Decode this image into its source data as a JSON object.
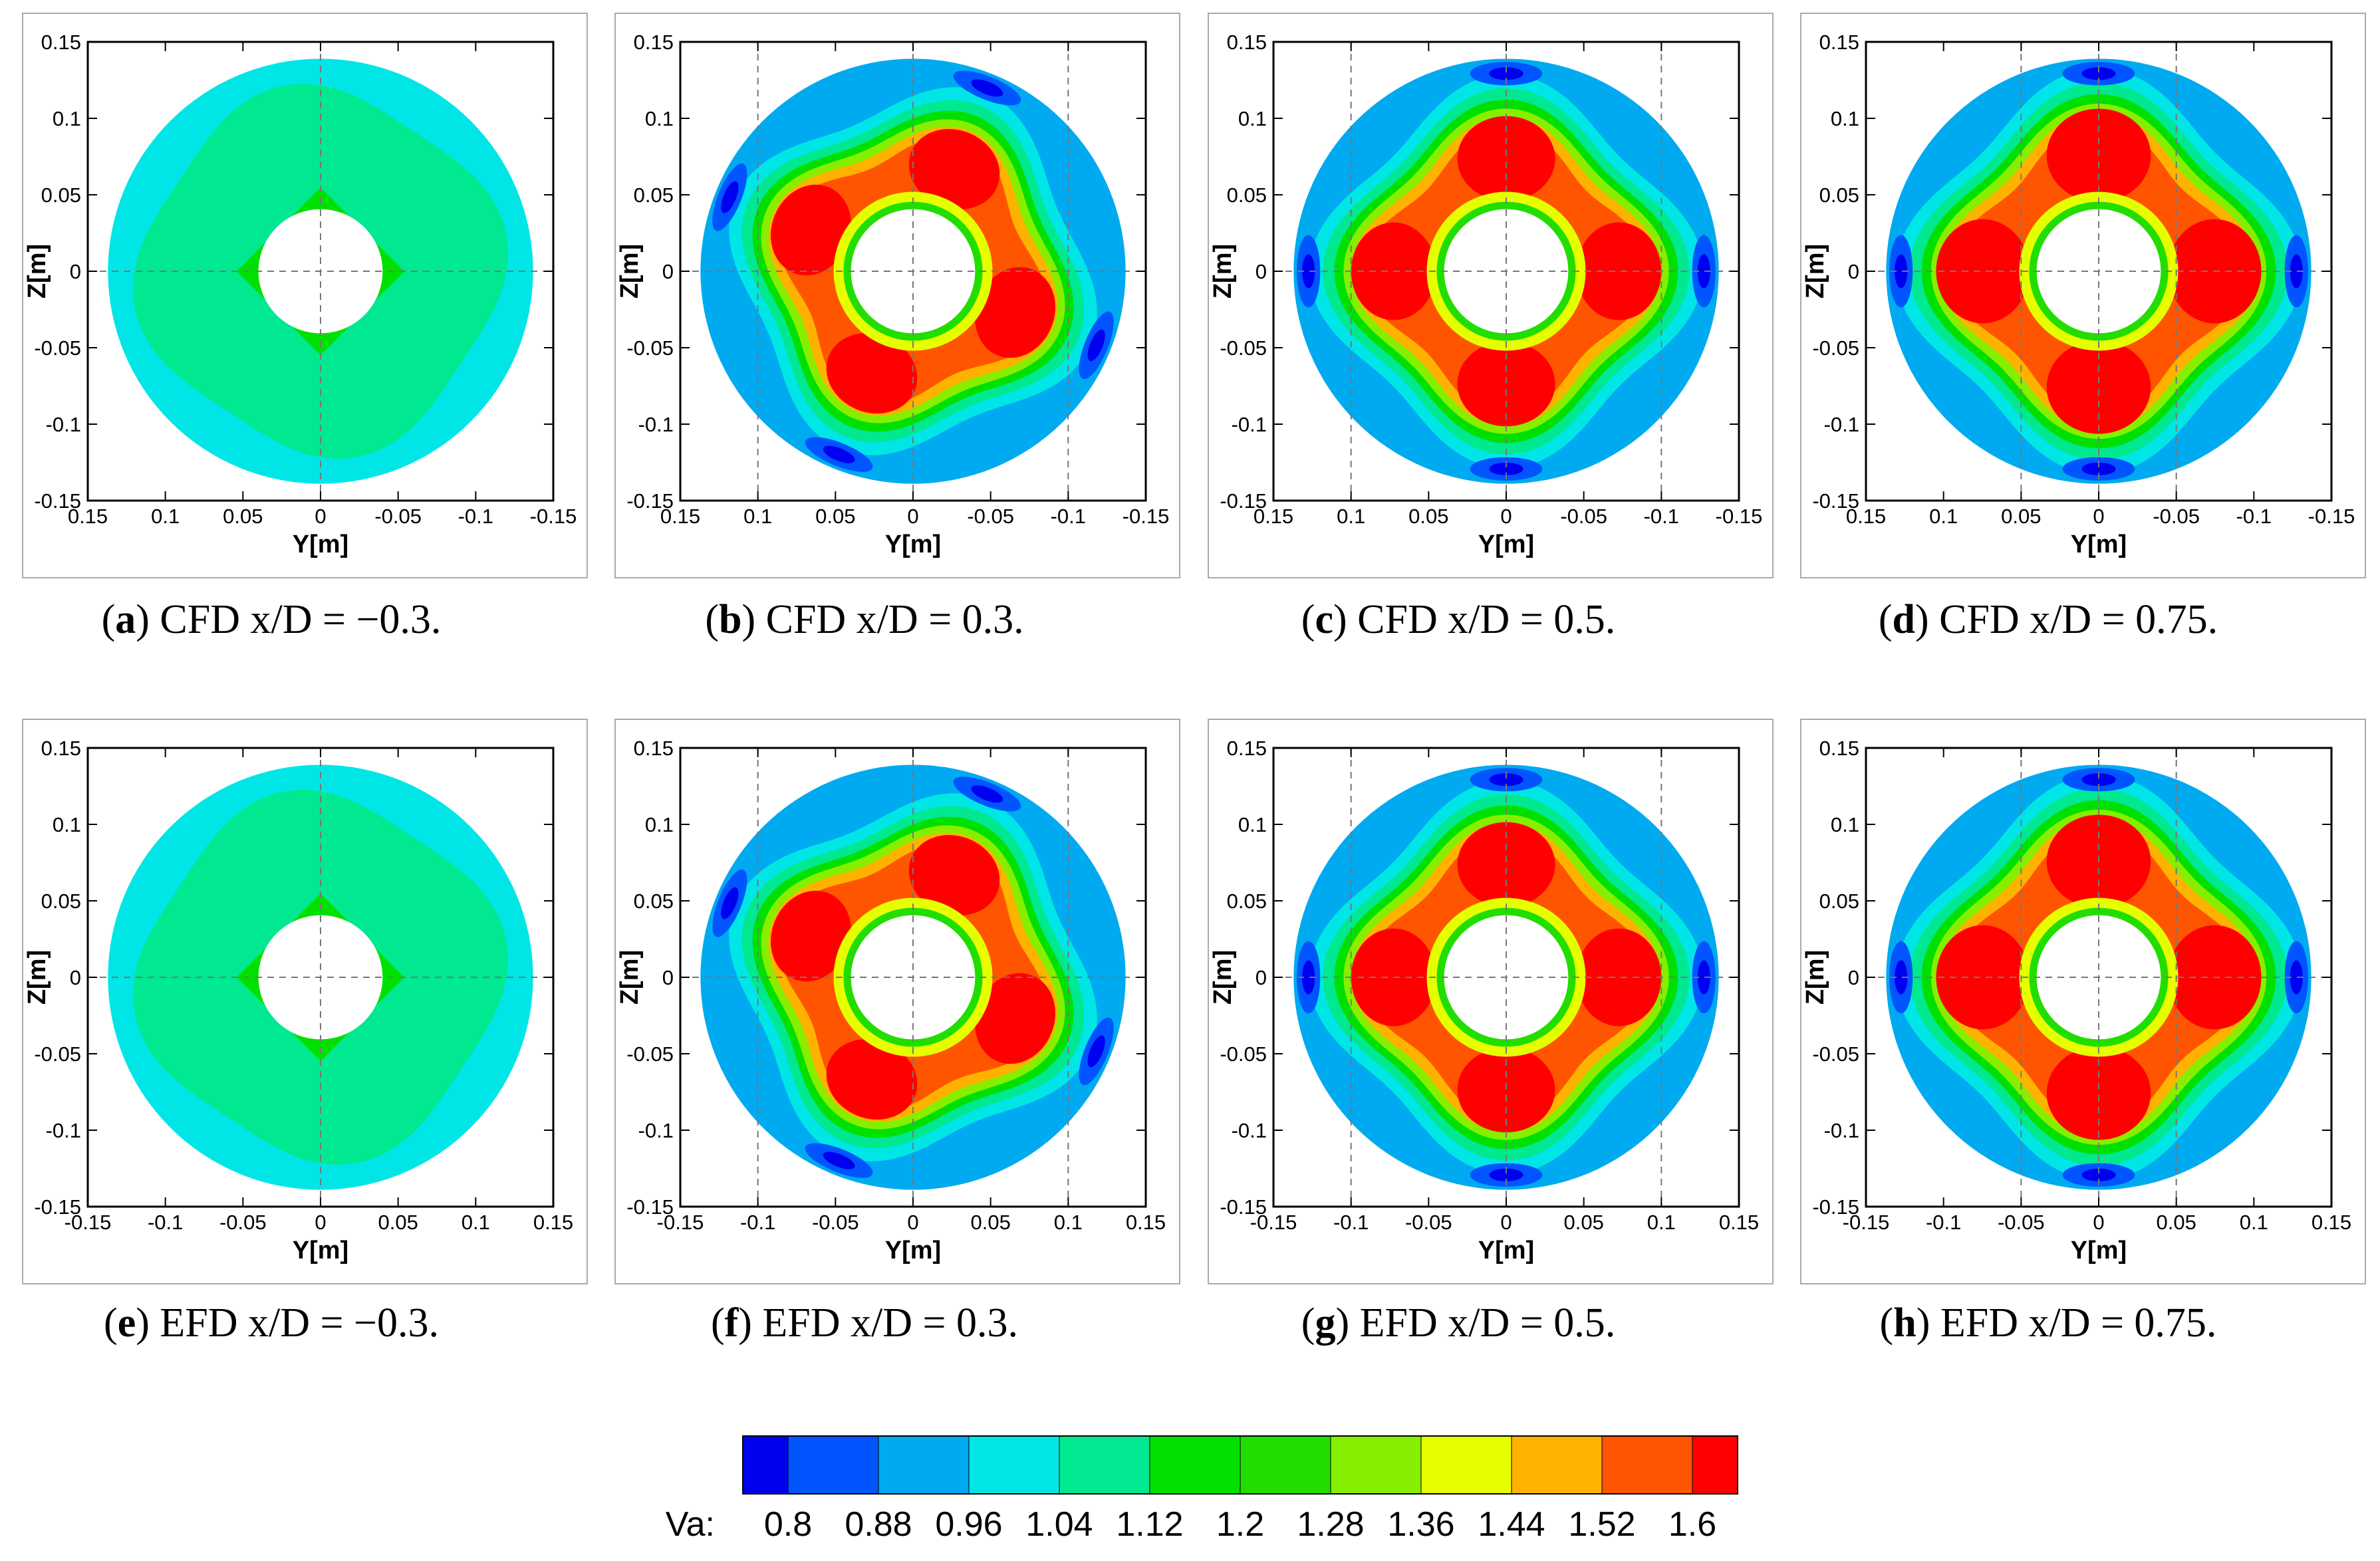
{
  "chart_data": {
    "type": "heatmap",
    "title": "",
    "quantity": "Va",
    "xlabel": "Y[m]",
    "ylabel": "Z[m]",
    "xlim": [
      -0.15,
      0.15
    ],
    "ylim": [
      -0.15,
      0.15
    ],
    "grid": "dashed reference lines",
    "yticks": [
      "0.15",
      "0.1",
      "0.05",
      "0",
      "-0.05",
      "-0.1",
      "-0.15"
    ],
    "xticks_reversed": [
      "0.15",
      "0.1",
      "0.05",
      "0",
      "-0.05",
      "-0.1",
      "-0.15"
    ],
    "xticks_normal": [
      "-0.15",
      "-0.1",
      "-0.05",
      "0",
      "0.05",
      "0.1",
      "0.15"
    ],
    "panels": [
      {
        "letter": "a",
        "method": "CFD",
        "xd": "−0.3",
        "x_reversed": true,
        "case": "upstream",
        "ring": 0,
        "rot": 0,
        "dashed_x": []
      },
      {
        "letter": "b",
        "method": "CFD",
        "xd": "0.3",
        "x_reversed": true,
        "case": "wake",
        "ring": 0.3,
        "rot": 22,
        "dashed_x": [
          0.1,
          -0.1
        ]
      },
      {
        "letter": "c",
        "method": "CFD",
        "xd": "0.5",
        "x_reversed": true,
        "case": "wake",
        "ring": 0.5,
        "rot": 0,
        "dashed_x": [
          0.1,
          -0.1
        ]
      },
      {
        "letter": "d",
        "method": "CFD",
        "xd": "0.75",
        "x_reversed": true,
        "case": "wake",
        "ring": 0.75,
        "rot": 0,
        "dashed_x": [
          0.05,
          -0.05
        ]
      },
      {
        "letter": "e",
        "method": "EFD",
        "xd": "−0.3",
        "x_reversed": false,
        "case": "upstream",
        "ring": 0,
        "rot": 0,
        "dashed_x": []
      },
      {
        "letter": "f",
        "method": "EFD",
        "xd": "0.3",
        "x_reversed": false,
        "case": "wake",
        "ring": 0.3,
        "rot": 22,
        "dashed_x": [
          -0.1,
          0.1
        ]
      },
      {
        "letter": "g",
        "method": "EFD",
        "xd": "0.5",
        "x_reversed": false,
        "case": "wake",
        "ring": 0.5,
        "rot": 0,
        "dashed_x": [
          -0.1,
          0.1
        ]
      },
      {
        "letter": "h",
        "method": "EFD",
        "xd": "0.75",
        "x_reversed": false,
        "case": "wake",
        "ring": 0.75,
        "rot": 0,
        "dashed_x": [
          0.05,
          -0.05
        ]
      }
    ],
    "colorbar": {
      "label": "Va:",
      "levels": [
        "0.8",
        "0.88",
        "0.96",
        "1.04",
        "1.12",
        "1.2",
        "1.28",
        "1.36",
        "1.44",
        "1.52",
        "1.6"
      ],
      "colors": [
        "#0000f0",
        "#0055ff",
        "#00aaf0",
        "#00e6e6",
        "#00e890",
        "#00e000",
        "#22dd00",
        "#88ee00",
        "#e6ff00",
        "#ffb300",
        "#ff5500",
        "#ff0000"
      ]
    }
  }
}
